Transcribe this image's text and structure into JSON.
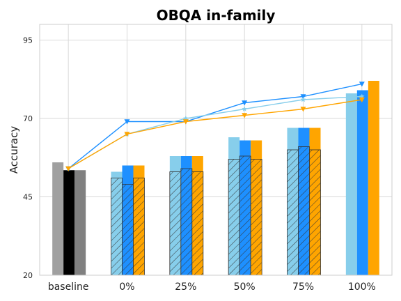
{
  "chart_data": {
    "type": "bar",
    "title": "OBQA in-family",
    "xlabel": "",
    "ylabel": "Accuracy",
    "ylim": [
      20,
      100
    ],
    "yticks": [
      20,
      45,
      70,
      95
    ],
    "grid": true,
    "legend": "none",
    "categories": [
      "baseline",
      "0%",
      "25%",
      "50%",
      "75%",
      "100%"
    ],
    "bar_series": [
      {
        "color": "#a0a0a0",
        "hatch_color": "#87ceeb",
        "values": [
          null,
          53,
          58,
          64,
          67,
          78
        ]
      },
      {
        "color": "#000000",
        "hatch_color": "#1e90ff",
        "values": [
          null,
          55,
          58,
          63,
          67,
          79
        ]
      },
      {
        "color": "#808080",
        "hatch_color": "#ffa500",
        "values": [
          null,
          55,
          58,
          63,
          67,
          82
        ]
      }
    ],
    "baseline_values": [
      56,
      53.5,
      53.5
    ],
    "baseline_colors": [
      "#a0a0a0",
      "#000000",
      "#808080"
    ],
    "hatched_values": [
      [
        51,
        53,
        57,
        60
      ],
      [
        49,
        54,
        58,
        61
      ],
      [
        51,
        53,
        57,
        60
      ]
    ],
    "line_series": [
      {
        "color": "#1e90ff",
        "marker": "triangle-down",
        "values": [
          54,
          69,
          69,
          75,
          77,
          81
        ]
      },
      {
        "color": "#87ceeb",
        "marker": "star",
        "values": [
          54,
          65,
          70,
          73,
          76,
          77
        ]
      },
      {
        "color": "#ffa500",
        "marker": "triangle-down",
        "values": [
          54,
          65,
          69,
          71,
          73,
          76
        ]
      }
    ]
  }
}
